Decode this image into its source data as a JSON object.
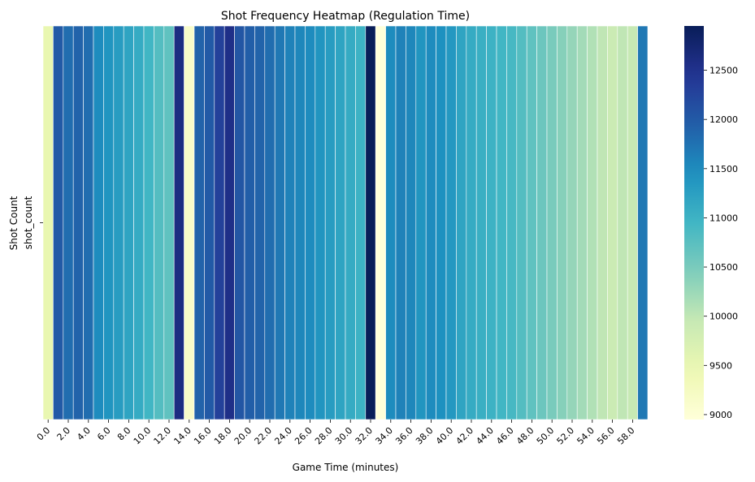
{
  "chart_data": {
    "type": "heatmap",
    "title": "Shot Frequency Heatmap (Regulation Time)",
    "xlabel": "Game Time (minutes)",
    "ylabel": "Shot Count",
    "row_labels": [
      "shot_count"
    ],
    "x_tick_labels": [
      "0.0",
      "2.0",
      "4.0",
      "6.0",
      "8.0",
      "10.0",
      "12.0",
      "14.0",
      "16.0",
      "18.0",
      "20.0",
      "22.0",
      "24.0",
      "26.0",
      "28.0",
      "30.0",
      "32.0",
      "34.0",
      "36.0",
      "38.0",
      "40.0",
      "42.0",
      "44.0",
      "46.0",
      "48.0",
      "50.0",
      "52.0",
      "54.0",
      "56.0",
      "58.0"
    ],
    "x": [
      0,
      1,
      2,
      3,
      4,
      5,
      6,
      7,
      8,
      9,
      10,
      11,
      12,
      13,
      14,
      15,
      16,
      17,
      18,
      19,
      20,
      21,
      22,
      23,
      24,
      25,
      26,
      27,
      28,
      29,
      30,
      31,
      32,
      33,
      34,
      35,
      36,
      37,
      38,
      39,
      40,
      41,
      42,
      43,
      44,
      45,
      46,
      47,
      48,
      49,
      50,
      51,
      52,
      53,
      54,
      55,
      56,
      57,
      58,
      59
    ],
    "values": [
      9500,
      12000,
      11800,
      11900,
      11800,
      11500,
      11400,
      11300,
      11200,
      11100,
      10950,
      10800,
      10700,
      12600,
      9150,
      11900,
      12000,
      12300,
      12550,
      12050,
      11950,
      11900,
      11800,
      11700,
      11600,
      11550,
      11500,
      11400,
      11300,
      11200,
      11100,
      11000,
      12950,
      8950,
      11500,
      11600,
      11550,
      11400,
      11500,
      11450,
      11350,
      11200,
      11100,
      11050,
      11000,
      10950,
      10900,
      10800,
      10700,
      10600,
      10500,
      10400,
      10300,
      10200,
      10100,
      10000,
      9900,
      10000,
      9950,
      11700
    ],
    "colorbar": {
      "range": [
        8950,
        12950
      ],
      "ticks": [
        "9000",
        "9500",
        "10000",
        "10500",
        "11000",
        "11500",
        "12000",
        "12500"
      ],
      "colormap": "YlGnBu"
    }
  }
}
